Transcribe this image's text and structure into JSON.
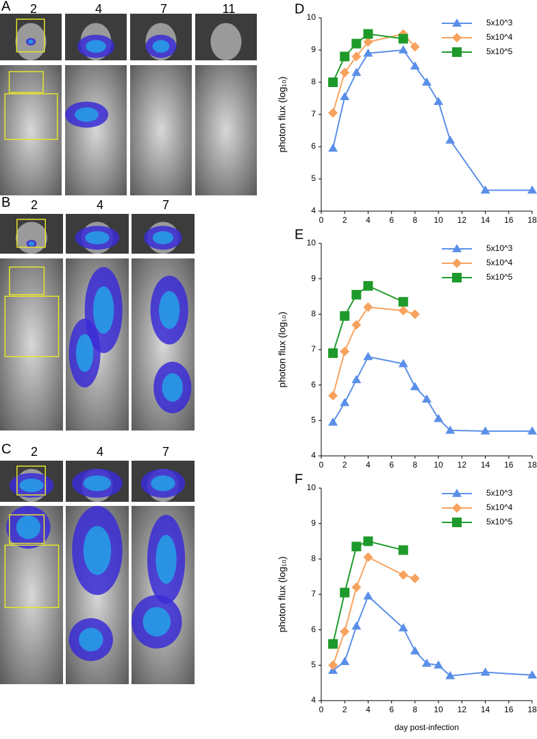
{
  "panels": [
    {
      "label": "A",
      "days": [
        "2",
        "4",
        "7",
        "11"
      ]
    },
    {
      "label": "B",
      "days": [
        "2",
        "4",
        "7"
      ]
    },
    {
      "label": "C",
      "days": [
        "2",
        "4",
        "7"
      ]
    }
  ],
  "chart_data": [
    {
      "type": "line",
      "panel": "D",
      "y_label": "photon flux (log₁₀)",
      "xlim": [
        0,
        18
      ],
      "xticks": [
        0,
        2,
        4,
        6,
        8,
        10,
        12,
        14,
        16,
        18
      ],
      "ylim": [
        4,
        10
      ],
      "yticks": [
        4,
        5,
        6,
        7,
        8,
        9,
        10
      ],
      "legend": "upper right",
      "series": [
        {
          "name": "5x10^3",
          "color": "#5a8fe8",
          "marker": "triangle",
          "x": [
            1,
            2,
            3,
            4,
            7,
            8,
            9,
            10,
            11,
            14,
            18
          ],
          "values": [
            5.95,
            7.55,
            8.3,
            8.9,
            9.0,
            8.5,
            8.0,
            7.4,
            6.2,
            4.65,
            4.65
          ]
        },
        {
          "name": "5x10^4",
          "color": "#f7a25e",
          "marker": "diamond",
          "x": [
            1,
            2,
            3,
            4,
            7,
            8
          ],
          "values": [
            7.05,
            8.3,
            8.8,
            9.25,
            9.5,
            9.1
          ]
        },
        {
          "name": "5x10^5",
          "color": "#1e9a2a",
          "marker": "square",
          "x": [
            1,
            2,
            3,
            4,
            7
          ],
          "values": [
            8.0,
            8.8,
            9.2,
            9.5,
            9.35
          ]
        }
      ]
    },
    {
      "type": "line",
      "panel": "E",
      "y_label": "photon flux (log₁₀)",
      "xlim": [
        0,
        18
      ],
      "xticks": [
        0,
        2,
        4,
        6,
        8,
        10,
        12,
        14,
        16,
        18
      ],
      "ylim": [
        4,
        10
      ],
      "yticks": [
        4,
        5,
        6,
        7,
        8,
        9,
        10
      ],
      "legend": "upper right",
      "series": [
        {
          "name": "5x10^3",
          "color": "#5a8fe8",
          "marker": "triangle",
          "x": [
            1,
            2,
            3,
            4,
            7,
            8,
            9,
            10,
            11,
            14,
            18
          ],
          "values": [
            4.95,
            5.5,
            6.15,
            6.8,
            6.6,
            5.95,
            5.6,
            5.05,
            4.72,
            4.7,
            4.7
          ]
        },
        {
          "name": "5x10^4",
          "color": "#f7a25e",
          "marker": "diamond",
          "x": [
            1,
            2,
            3,
            4,
            7,
            8
          ],
          "values": [
            5.7,
            6.95,
            7.7,
            8.2,
            8.1,
            8.0
          ]
        },
        {
          "name": "5x10^5",
          "color": "#1e9a2a",
          "marker": "square",
          "x": [
            1,
            2,
            3,
            4,
            7
          ],
          "values": [
            6.9,
            7.95,
            8.55,
            8.8,
            8.35
          ]
        }
      ]
    },
    {
      "type": "line",
      "panel": "F",
      "y_label": "photon flux (log₁₀)",
      "x_label": "day post-infection",
      "xlim": [
        0,
        18
      ],
      "xticks": [
        0,
        2,
        4,
        6,
        8,
        10,
        12,
        14,
        16,
        18
      ],
      "ylim": [
        4,
        10
      ],
      "yticks": [
        4,
        5,
        6,
        7,
        8,
        9,
        10
      ],
      "legend": "upper right",
      "series": [
        {
          "name": "5x10^3",
          "color": "#5a8fe8",
          "marker": "triangle",
          "x": [
            1,
            2,
            3,
            4,
            7,
            8,
            9,
            10,
            11,
            14,
            18
          ],
          "values": [
            4.85,
            5.1,
            6.1,
            6.95,
            6.05,
            5.4,
            5.05,
            5.0,
            4.7,
            4.8,
            4.72
          ]
        },
        {
          "name": "5x10^4",
          "color": "#f7a25e",
          "marker": "diamond",
          "x": [
            1,
            2,
            3,
            4,
            7,
            8
          ],
          "values": [
            5.0,
            5.95,
            7.2,
            8.05,
            7.55,
            7.45
          ]
        },
        {
          "name": "5x10^5",
          "color": "#1e9a2a",
          "marker": "square",
          "x": [
            1,
            2,
            3,
            4,
            7
          ],
          "values": [
            5.6,
            7.05,
            8.35,
            8.5,
            8.25
          ]
        }
      ]
    }
  ]
}
